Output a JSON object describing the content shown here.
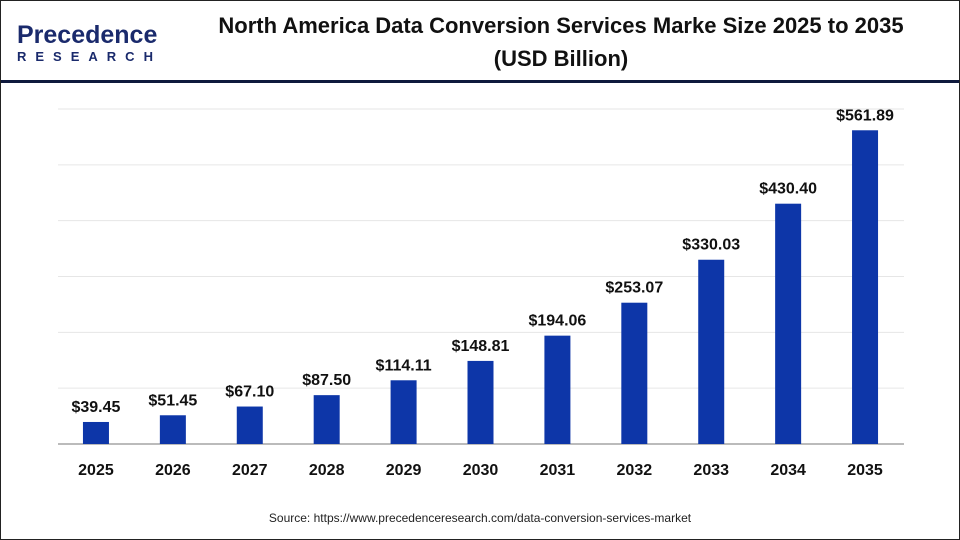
{
  "logo": {
    "line1": "Precedence",
    "line2": "RESEARCH"
  },
  "title": "North America Data Conversion Services Marke Size 2025 to 2035 (USD Billion)",
  "source": "Source: https://www.precedenceresearch.com/data-conversion-services-market",
  "chart_data": {
    "type": "bar",
    "title": "North America Data Conversion Services Marke Size 2025 to 2035 (USD Billion)",
    "categories": [
      "2025",
      "2026",
      "2027",
      "2028",
      "2029",
      "2030",
      "2031",
      "2032",
      "2033",
      "2034",
      "2035"
    ],
    "values": [
      39.45,
      51.45,
      67.1,
      87.5,
      114.11,
      148.81,
      194.06,
      253.07,
      330.03,
      430.4,
      561.89
    ],
    "labels": [
      "$39.45",
      "$51.45",
      "$67.10",
      "$87.50",
      "$114.11",
      "$148.81",
      "$194.06",
      "$253.07",
      "$330.03",
      "$430.40",
      "$561.89"
    ],
    "ylim": [
      0,
      600
    ],
    "grid": true,
    "bar_color": "#0d36a8",
    "xlabel": "",
    "ylabel": ""
  }
}
